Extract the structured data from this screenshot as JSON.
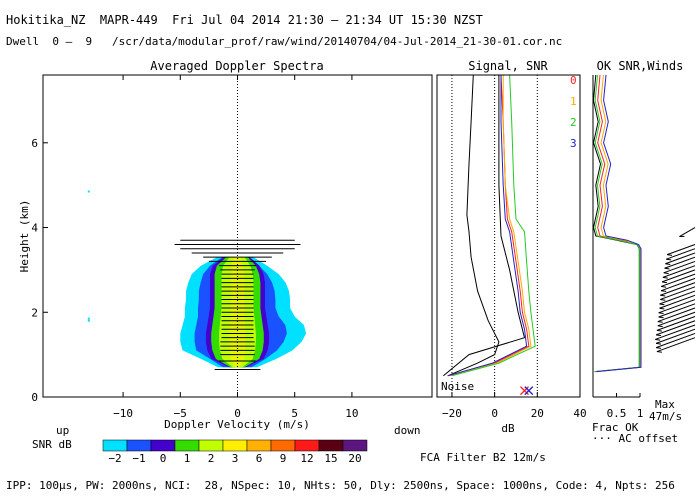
{
  "header": {
    "title": "Hokitika_NZ  MAPR-449  Fri Jul 04 2014 21:30 — 21:34 UT 15:30 NZST",
    "dwell": "Dwell  0 —  9   /scr/data/modular_prof/raw/wind/20140704/04-Jul-2014_21-30-01.cor.nc"
  },
  "footer": {
    "params": "IPP: 100μs, PW: 2000ns, NCI:  28, NSpec: 10, NHts: 50, Dly: 2500ns, Space: 1000ns, Code: 4, Npts: 256",
    "filter": "FCA Filter B2 12m/s"
  },
  "colors": {
    "snr": [
      "#00e0ff",
      "#1a52ff",
      "#4400cc",
      "#33dd00",
      "#bfff00",
      "#ffee00",
      "#ffb000",
      "#ff6a00",
      "#ff1a1a",
      "#5a0012",
      "#5c1680"
    ],
    "ch0": "#ff2020",
    "ch1": "#ffaa00",
    "ch2": "#22cc22",
    "ch3": "#2222cc"
  },
  "chart_data": [
    {
      "type": "heatmap",
      "title": "Averaged Doppler Spectra",
      "xlabel": "Doppler Velocity (m/s)",
      "ylabel": "Height (km)",
      "xlim": [
        -17,
        17
      ],
      "ylim": [
        0,
        7.6
      ],
      "x_ticks": [
        -10,
        -5,
        0,
        5,
        10
      ],
      "y_ticks": [
        0,
        2,
        4,
        6
      ],
      "x_tick_labels": [
        "−10",
        "−5",
        "0",
        "5",
        "10"
      ],
      "y_tick_labels": [
        "0",
        "2",
        "4",
        "6"
      ],
      "left_label": "up",
      "right_label": "down",
      "colorbar": {
        "label": "SNR dB",
        "tick_labels": [
          "−2",
          "−1",
          "0",
          "1",
          "2",
          "3",
          "6",
          "9",
          "12",
          "15",
          "20"
        ]
      },
      "echo_region": {
        "heights_km": [
          0.7,
          0.9,
          1.1,
          1.3,
          1.5,
          1.7,
          1.9,
          2.1,
          2.3,
          2.5,
          2.7,
          2.9,
          3.1,
          3.3
        ],
        "cyan_left": [
          -1.7,
          -3.2,
          -4.8,
          -5.0,
          -5.0,
          -4.8,
          -4.6,
          -4.6,
          -4.5,
          -4.5,
          -4.3,
          -4.0,
          -3.2,
          -1.8
        ],
        "cyan_right": [
          1.7,
          3.4,
          4.8,
          5.6,
          6.0,
          5.8,
          5.0,
          4.6,
          4.6,
          4.5,
          4.2,
          3.6,
          2.6,
          1.4
        ],
        "green_left": [
          -0.6,
          -1.9,
          -2.2,
          -2.3,
          -2.3,
          -2.2,
          -2.1,
          -2.0,
          -2.0,
          -2.0,
          -2.0,
          -2.0,
          -1.8,
          -1.0
        ],
        "green_right": [
          0.6,
          1.9,
          2.2,
          2.3,
          2.3,
          2.2,
          2.1,
          2.0,
          2.0,
          2.0,
          2.0,
          1.9,
          1.6,
          0.9
        ],
        "bar_heights_km": [
          0.65,
          0.85,
          1.0,
          1.1,
          1.2,
          1.3,
          1.4,
          1.5,
          1.6,
          1.7,
          1.8,
          1.9,
          2.0,
          2.1,
          2.2,
          2.3,
          2.4,
          2.5,
          2.6,
          2.7,
          2.8,
          2.9,
          3.0,
          3.1,
          3.2,
          3.3,
          3.4,
          3.5,
          3.6,
          3.7
        ],
        "bar_half_width": [
          2.0,
          1.6,
          1.5,
          1.5,
          1.5,
          1.5,
          1.4,
          1.4,
          1.4,
          1.4,
          1.4,
          1.4,
          1.4,
          1.4,
          1.4,
          1.4,
          1.4,
          1.4,
          1.4,
          1.4,
          1.4,
          1.4,
          1.5,
          1.6,
          2.5,
          3.0,
          4.0,
          5.0,
          5.5,
          5.0
        ]
      }
    },
    {
      "type": "line",
      "title": "Signal, SNR",
      "xlabel": "dB",
      "xlim": [
        -27,
        40
      ],
      "ylim": [
        0,
        7.6
      ],
      "x_ticks": [
        -20,
        0,
        20,
        40
      ],
      "x_tick_labels": [
        "−20",
        "0",
        "20",
        "40"
      ],
      "noise_label": "Noise",
      "series": [
        {
          "name": "signal",
          "color": "#000000",
          "points": [
            [
              -22,
              0.5
            ],
            [
              -8,
              0.8
            ],
            [
              0,
              1.0
            ],
            [
              2,
              1.3
            ],
            [
              -3,
              1.8
            ],
            [
              -8,
              2.5
            ],
            [
              -11,
              3.3
            ],
            [
              -12,
              3.9
            ],
            [
              -13,
              4.3
            ],
            [
              -12,
              5.5
            ],
            [
              -11,
              6.5
            ],
            [
              -10,
              7.6
            ]
          ]
        },
        {
          "name": "black2",
          "color": "#000000",
          "points": [
            [
              -24,
              0.5
            ],
            [
              -12,
              1.0
            ],
            [
              14,
              1.4
            ],
            [
              11,
              2.0
            ],
            [
              7,
              3.0
            ],
            [
              3,
              3.8
            ],
            [
              2,
              5.0
            ],
            [
              2,
              6.5
            ],
            [
              2,
              7.6
            ]
          ]
        },
        {
          "name": "0",
          "color": "#ff2020",
          "points": [
            [
              -22,
              0.5
            ],
            [
              0,
              0.8
            ],
            [
              16,
              1.2
            ],
            [
              15,
              1.6
            ],
            [
              13,
              2.0
            ],
            [
              12,
              2.5
            ],
            [
              10,
              3.2
            ],
            [
              8,
              3.9
            ],
            [
              6,
              4.2
            ],
            [
              5,
              5.0
            ],
            [
              4,
              6.5
            ],
            [
              3,
              7.6
            ]
          ]
        },
        {
          "name": "1",
          "color": "#ffaa00",
          "points": [
            [
              -21,
              0.5
            ],
            [
              1,
              0.8
            ],
            [
              17,
              1.2
            ],
            [
              16,
              1.6
            ],
            [
              14,
              2.0
            ],
            [
              13,
              2.5
            ],
            [
              11,
              3.2
            ],
            [
              9,
              3.9
            ],
            [
              7,
              4.2
            ],
            [
              5,
              5.0
            ],
            [
              4,
              6.5
            ],
            [
              4,
              7.6
            ]
          ]
        },
        {
          "name": "2",
          "color": "#22cc22",
          "points": [
            [
              -20,
              0.5
            ],
            [
              2,
              0.8
            ],
            [
              19,
              1.2
            ],
            [
              18,
              1.6
            ],
            [
              17,
              2.0
            ],
            [
              16,
              2.5
            ],
            [
              15,
              3.2
            ],
            [
              14,
              3.9
            ],
            [
              10,
              4.2
            ],
            [
              9,
              5.0
            ],
            [
              8,
              6.5
            ],
            [
              7,
              7.6
            ]
          ]
        },
        {
          "name": "3",
          "color": "#2222cc",
          "points": [
            [
              -22,
              0.5
            ],
            [
              -1,
              0.8
            ],
            [
              15,
              1.2
            ],
            [
              14,
              1.6
            ],
            [
              12,
              2.0
            ],
            [
              11,
              2.5
            ],
            [
              9,
              3.2
            ],
            [
              7,
              3.9
            ],
            [
              5,
              4.2
            ],
            [
              4,
              5.0
            ],
            [
              3,
              6.5
            ],
            [
              3,
              7.6
            ]
          ]
        }
      ],
      "markers": [
        {
          "x": 14,
          "y": 0.15,
          "color": "#ff2020"
        },
        {
          "x": 16,
          "y": 0.15,
          "color": "#2222cc"
        }
      ]
    },
    {
      "type": "line",
      "title": "OK SNR,Winds",
      "legend": [
        "0",
        "1",
        "2",
        "3"
      ],
      "x_tick_labels": [
        "0.5",
        "1"
      ],
      "xlabel": "Frac OK",
      "note": "··· AC offset",
      "max_label": "Max",
      "max_value": "47m/s",
      "ok_fraction_profile": {
        "heights_km": [
          0.6,
          0.7,
          3.5,
          3.6,
          3.7,
          3.8,
          4.0,
          4.5,
          5.0,
          5.5,
          6.0,
          6.5,
          7.0,
          7.6
        ],
        "values": [
          0.05,
          1.0,
          1.0,
          0.95,
          0.6,
          0.15,
          0.1,
          0.2,
          0.15,
          0.25,
          0.1,
          0.2,
          0.1,
          0.15
        ]
      },
      "winds": {
        "heights_km": [
          1.4,
          1.5,
          1.6,
          1.7,
          1.8,
          1.9,
          2.0,
          2.1,
          2.2,
          2.3,
          2.4,
          2.5,
          2.6,
          2.7,
          2.8,
          2.9,
          3.0,
          3.1,
          3.2,
          3.3,
          3.4,
          3.5,
          3.6,
          4.0
        ],
        "speed_ms": [
          45,
          46,
          46,
          47,
          46,
          45,
          44,
          44,
          43,
          43,
          42,
          42,
          41,
          41,
          40,
          40,
          39,
          38,
          37,
          36,
          35,
          34,
          33,
          20
        ],
        "dir_deg": [
          290,
          290,
          290,
          290,
          290,
          290,
          290,
          290,
          290,
          290,
          290,
          290,
          290,
          290,
          290,
          290,
          290,
          290,
          290,
          290,
          290,
          290,
          290,
          300
        ]
      }
    }
  ]
}
